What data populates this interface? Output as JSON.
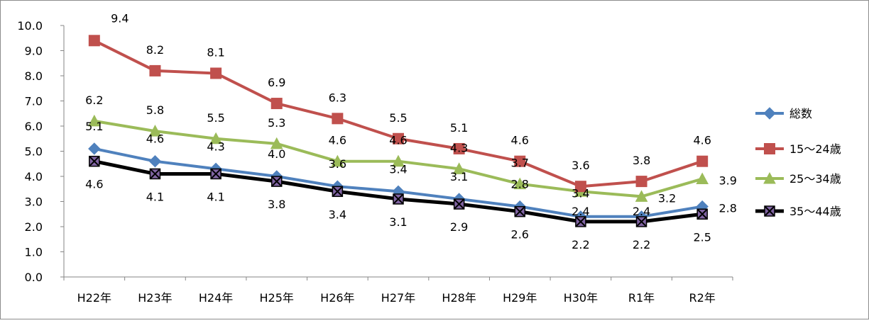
{
  "chart_data": {
    "type": "line",
    "title": "",
    "xlabel": "",
    "ylabel": "",
    "categories": [
      "H22年",
      "H23年",
      "H24年",
      "H25年",
      "H26年",
      "H27年",
      "H28年",
      "H29年",
      "H30年",
      "R1年",
      "R2年"
    ],
    "ylim": [
      0,
      10
    ],
    "ytick_labels": [
      "0.0",
      "1.0",
      "2.0",
      "3.0",
      "4.0",
      "5.0",
      "6.0",
      "7.0",
      "8.0",
      "9.0",
      "10.0"
    ],
    "grid": false,
    "legend_position": "right",
    "series": [
      {
        "name": "総数",
        "color": "#4F81BD",
        "marker": "diamond",
        "values": [
          5.1,
          4.6,
          4.3,
          4.0,
          3.6,
          3.4,
          3.1,
          2.8,
          2.4,
          2.4,
          2.8
        ],
        "labels": [
          "5.1",
          "4.6",
          "4.3",
          "4.0",
          "3.6",
          "3.4",
          "3.1",
          "2.8",
          "2.4",
          "2.4",
          "2.8"
        ]
      },
      {
        "name": "15～24歳",
        "color": "#C0504D",
        "marker": "square",
        "values": [
          9.4,
          8.2,
          8.1,
          6.9,
          6.3,
          5.5,
          5.1,
          4.6,
          3.6,
          3.8,
          4.6
        ],
        "labels": [
          "9.4",
          "8.2",
          "8.1",
          "6.9",
          "6.3",
          "5.5",
          "5.1",
          "4.6",
          "3.6",
          "3.8",
          "4.6"
        ]
      },
      {
        "name": "25～34歳",
        "color": "#9BBB59",
        "marker": "triangle",
        "values": [
          6.2,
          5.8,
          5.5,
          5.3,
          4.6,
          4.6,
          4.3,
          3.7,
          3.4,
          3.2,
          3.9
        ],
        "labels": [
          "6.2",
          "5.8",
          "5.5",
          "5.3",
          "4.6",
          "4.6",
          "4.3",
          "3.7",
          "3.4",
          "3.2",
          "3.9"
        ]
      },
      {
        "name": "35～44歳",
        "color": "#000000",
        "marker": "x-square",
        "marker_fill": "#8064A2",
        "values": [
          4.6,
          4.1,
          4.1,
          3.8,
          3.4,
          3.1,
          2.9,
          2.6,
          2.2,
          2.2,
          2.5
        ],
        "labels": [
          "4.6",
          "4.1",
          "4.1",
          "3.8",
          "3.4",
          "3.1",
          "2.9",
          "2.6",
          "2.2",
          "2.2",
          "2.5"
        ]
      }
    ]
  }
}
